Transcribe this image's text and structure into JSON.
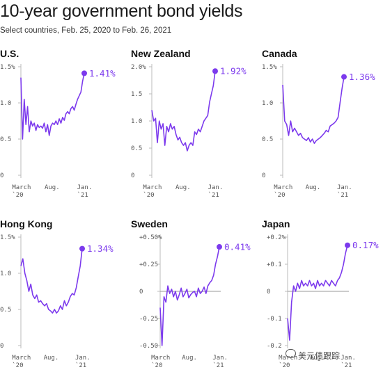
{
  "header": {
    "title": "10-year government bond yields",
    "subtitle": "Select countries, Feb. 25, 2020 to Feb. 26, 2021"
  },
  "colors": {
    "line": "#7C3AED",
    "axis": "#bbbbbb",
    "tick_text": "#555555"
  },
  "watermark": "美元债跟踪",
  "chart_data": [
    {
      "type": "line",
      "title": "U.S.",
      "ylim": [
        0,
        1.5
      ],
      "yticks": [
        "0",
        "0.5",
        "1.0",
        "1.5%"
      ],
      "ytick_values": [
        0,
        0.5,
        1.0,
        1.5
      ],
      "xticks": [
        "March\n`20",
        "Aug.",
        "Jan.\n`21"
      ],
      "end_label": "1.41%",
      "end_value": 1.41,
      "values": [
        1.35,
        0.5,
        1.05,
        0.7,
        0.95,
        0.6,
        0.75,
        0.68,
        0.72,
        0.62,
        0.7,
        0.66,
        0.68,
        0.65,
        0.72,
        0.6,
        0.7,
        0.55,
        0.68,
        0.72,
        0.7,
        0.75,
        0.7,
        0.78,
        0.72,
        0.8,
        0.76,
        0.85,
        0.88,
        0.85,
        0.92,
        0.95,
        0.9,
        0.98,
        1.05,
        1.1,
        1.15,
        1.3,
        1.41
      ]
    },
    {
      "type": "line",
      "title": "New Zealand",
      "ylim": [
        0,
        2.0
      ],
      "yticks": [
        "0",
        "0.5",
        "1.0",
        "1.5",
        "2.0%"
      ],
      "ytick_values": [
        0,
        0.5,
        1.0,
        1.5,
        2.0
      ],
      "xticks": [
        "March\n`20",
        "Aug.",
        "Jan.\n`21"
      ],
      "end_label": "1.92%",
      "end_value": 1.92,
      "values": [
        1.2,
        1.0,
        1.05,
        0.6,
        1.0,
        0.85,
        0.95,
        0.55,
        0.9,
        0.8,
        0.95,
        0.85,
        0.9,
        0.75,
        0.65,
        0.7,
        0.6,
        0.55,
        0.6,
        0.45,
        0.55,
        0.6,
        0.55,
        0.8,
        0.75,
        0.85,
        0.8,
        0.9,
        1.0,
        1.05,
        1.1,
        1.35,
        1.5,
        1.65,
        1.92
      ]
    },
    {
      "type": "line",
      "title": "Canada",
      "ylim": [
        0,
        1.5
      ],
      "yticks": [
        "0",
        "0.5",
        "1.0",
        "1.5%"
      ],
      "ytick_values": [
        0,
        0.5,
        1.0,
        1.5
      ],
      "xticks": [
        "March\n`20",
        "Aug.",
        "Jan.\n`21"
      ],
      "end_label": "1.36%",
      "end_value": 1.36,
      "values": [
        1.25,
        0.75,
        0.7,
        0.55,
        0.75,
        0.6,
        0.65,
        0.6,
        0.55,
        0.58,
        0.52,
        0.5,
        0.48,
        0.52,
        0.46,
        0.5,
        0.44,
        0.48,
        0.5,
        0.52,
        0.55,
        0.58,
        0.62,
        0.6,
        0.68,
        0.7,
        0.72,
        0.75,
        0.8,
        1.0,
        1.2,
        1.36
      ]
    },
    {
      "type": "line",
      "title": "Hong Kong",
      "ylim": [
        0,
        1.5
      ],
      "yticks": [
        "0",
        "0.5",
        "1.0",
        "1.5%"
      ],
      "ytick_values": [
        0,
        0.5,
        1.0,
        1.5
      ],
      "xticks": [
        "March\n`20",
        "Aug.",
        "Jan.\n`21"
      ],
      "end_label": "1.34%",
      "end_value": 1.34,
      "values": [
        1.1,
        1.2,
        1.0,
        0.9,
        0.75,
        0.85,
        0.7,
        0.65,
        0.7,
        0.6,
        0.62,
        0.58,
        0.55,
        0.58,
        0.5,
        0.48,
        0.45,
        0.5,
        0.45,
        0.48,
        0.55,
        0.5,
        0.62,
        0.55,
        0.6,
        0.68,
        0.72,
        0.7,
        0.8,
        0.95,
        1.1,
        1.34
      ]
    },
    {
      "type": "line",
      "title": "Sweden",
      "ylim": [
        -0.5,
        0.5
      ],
      "yticks": [
        "-0.50",
        "-0.25",
        "0",
        "+0.25",
        "+0.50%"
      ],
      "ytick_values": [
        -0.5,
        -0.25,
        0,
        0.25,
        0.5
      ],
      "xticks": [
        "March\n`20",
        "Aug.",
        "Jan.\n`21"
      ],
      "end_label": "0.41%",
      "end_value": 0.41,
      "values": [
        -0.15,
        -0.5,
        -0.05,
        -0.1,
        0.05,
        -0.02,
        0.02,
        -0.05,
        0.0,
        -0.08,
        -0.03,
        0.03,
        -0.05,
        -0.02,
        0.02,
        -0.06,
        -0.03,
        -0.01,
        0.0,
        -0.05,
        0.03,
        -0.02,
        0.0,
        0.04,
        -0.02,
        0.05,
        0.08,
        0.1,
        0.15,
        0.25,
        0.32,
        0.41
      ]
    },
    {
      "type": "line",
      "title": "Japan",
      "ylim": [
        -0.2,
        0.2
      ],
      "yticks": [
        "-0.2",
        "-0.1",
        "0",
        "+0.1",
        "+0.2%"
      ],
      "ytick_values": [
        -0.2,
        -0.1,
        0,
        0.1,
        0.2
      ],
      "xticks": [
        "March\n`20",
        "Aug.",
        "Jan.\n`21"
      ],
      "end_label": "0.17%",
      "end_value": 0.17,
      "values": [
        -0.1,
        -0.18,
        -0.04,
        0.02,
        0.0,
        0.03,
        0.01,
        0.04,
        0.02,
        0.03,
        0.02,
        0.04,
        0.02,
        0.03,
        0.01,
        0.04,
        0.02,
        0.03,
        0.02,
        0.04,
        0.03,
        0.02,
        0.04,
        0.03,
        0.02,
        0.04,
        0.05,
        0.07,
        0.1,
        0.14,
        0.17
      ]
    }
  ]
}
